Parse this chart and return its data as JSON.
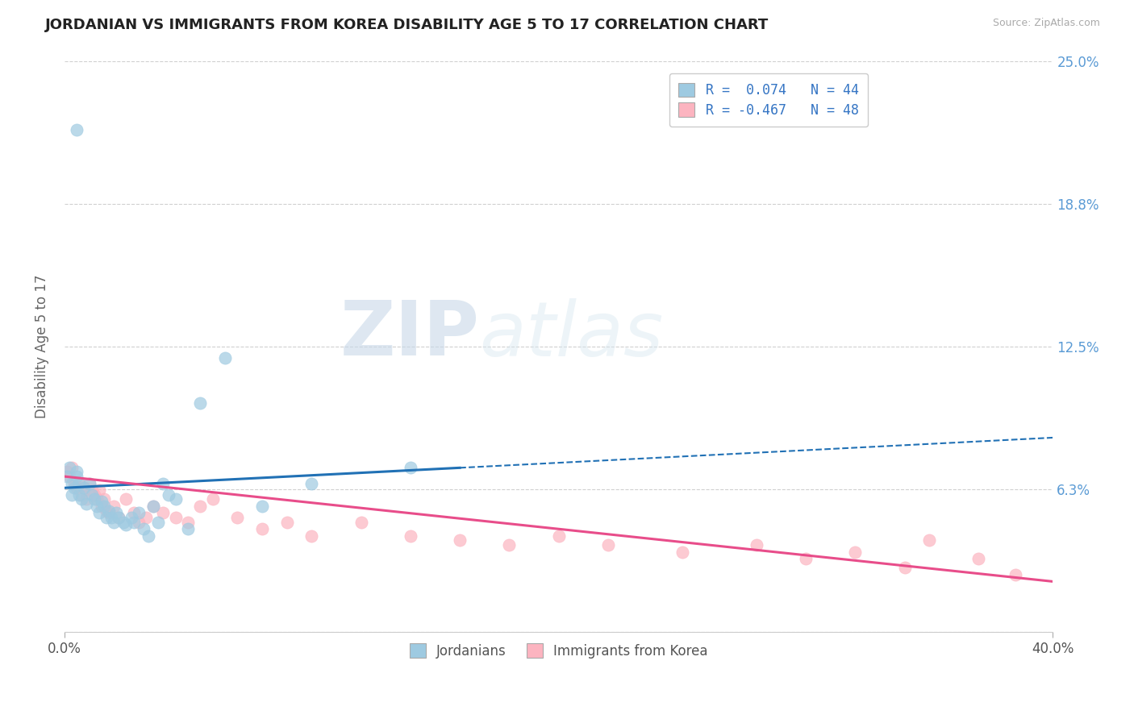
{
  "title": "JORDANIAN VS IMMIGRANTS FROM KOREA DISABILITY AGE 5 TO 17 CORRELATION CHART",
  "source": "Source: ZipAtlas.com",
  "ylabel": "Disability Age 5 to 17",
  "xlim": [
    0.0,
    0.4
  ],
  "ylim": [
    0.0,
    0.25
  ],
  "yticks": [
    0.0,
    0.0625,
    0.125,
    0.1875,
    0.25
  ],
  "ytick_labels": [
    "",
    "6.3%",
    "12.5%",
    "18.8%",
    "25.0%"
  ],
  "xtick_labels": [
    "0.0%",
    "40.0%"
  ],
  "color_jordanian": "#9ecae1",
  "color_korea": "#fcb4c0",
  "color_jordanian_line": "#2171b5",
  "color_korea_line": "#e84d8a",
  "background_color": "#ffffff",
  "grid_color": "#cccccc",
  "jordanian_x": [
    0.001,
    0.002,
    0.003,
    0.003,
    0.004,
    0.005,
    0.005,
    0.006,
    0.006,
    0.007,
    0.008,
    0.009,
    0.01,
    0.011,
    0.012,
    0.013,
    0.014,
    0.015,
    0.016,
    0.017,
    0.018,
    0.019,
    0.02,
    0.021,
    0.022,
    0.024,
    0.025,
    0.027,
    0.028,
    0.03,
    0.032,
    0.034,
    0.036,
    0.038,
    0.04,
    0.042,
    0.045,
    0.05,
    0.055,
    0.065,
    0.08,
    0.1,
    0.14,
    0.005
  ],
  "jordanian_y": [
    0.068,
    0.072,
    0.065,
    0.06,
    0.063,
    0.07,
    0.068,
    0.065,
    0.06,
    0.058,
    0.063,
    0.056,
    0.065,
    0.06,
    0.058,
    0.055,
    0.052,
    0.057,
    0.055,
    0.05,
    0.053,
    0.05,
    0.048,
    0.052,
    0.05,
    0.048,
    0.047,
    0.05,
    0.048,
    0.052,
    0.045,
    0.042,
    0.055,
    0.048,
    0.065,
    0.06,
    0.058,
    0.045,
    0.1,
    0.12,
    0.055,
    0.065,
    0.072,
    0.22
  ],
  "korea_x": [
    0.001,
    0.002,
    0.003,
    0.004,
    0.005,
    0.006,
    0.007,
    0.008,
    0.009,
    0.01,
    0.011,
    0.012,
    0.013,
    0.014,
    0.015,
    0.016,
    0.017,
    0.018,
    0.02,
    0.022,
    0.025,
    0.028,
    0.03,
    0.033,
    0.036,
    0.04,
    0.045,
    0.05,
    0.055,
    0.06,
    0.07,
    0.08,
    0.09,
    0.1,
    0.12,
    0.14,
    0.16,
    0.18,
    0.2,
    0.22,
    0.25,
    0.28,
    0.3,
    0.32,
    0.34,
    0.35,
    0.37,
    0.385
  ],
  "korea_y": [
    0.07,
    0.068,
    0.072,
    0.065,
    0.063,
    0.065,
    0.06,
    0.063,
    0.058,
    0.065,
    0.062,
    0.06,
    0.058,
    0.062,
    0.055,
    0.058,
    0.053,
    0.052,
    0.055,
    0.05,
    0.058,
    0.052,
    0.048,
    0.05,
    0.055,
    0.052,
    0.05,
    0.048,
    0.055,
    0.058,
    0.05,
    0.045,
    0.048,
    0.042,
    0.048,
    0.042,
    0.04,
    0.038,
    0.042,
    0.038,
    0.035,
    0.038,
    0.032,
    0.035,
    0.028,
    0.04,
    0.032,
    0.025
  ],
  "jordanian_line_solid_end": 0.16,
  "korea_line_solid_end": 0.385,
  "r_jordanian": 0.074,
  "r_korea": -0.467,
  "n_jordanian": 44,
  "n_korea": 48
}
